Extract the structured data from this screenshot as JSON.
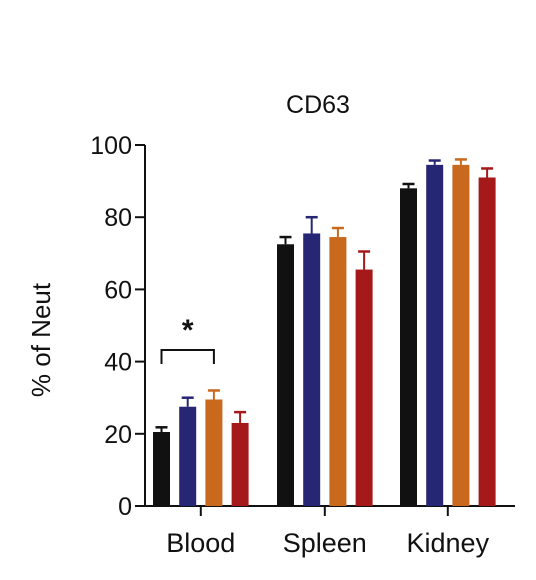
{
  "chart_data": {
    "type": "bar",
    "title": "CD63",
    "xlabel": "",
    "ylabel": "% of Neut",
    "ylim": [
      0,
      100
    ],
    "yticks": [
      "0",
      "20",
      "40",
      "60",
      "80",
      "100"
    ],
    "categories": [
      "Blood",
      "Spleen",
      "Kidney"
    ],
    "series": [
      {
        "color": "#111111",
        "values": [
          20.5,
          72.5,
          88
        ],
        "errors": [
          1.3,
          2,
          1.2
        ]
      },
      {
        "color": "#262674",
        "values": [
          27.5,
          75.5,
          94.5
        ],
        "errors": [
          2.5,
          4.5,
          1.2
        ]
      },
      {
        "color": "#c8691e",
        "values": [
          29.5,
          74.5,
          94.5
        ],
        "errors": [
          2.5,
          2.5,
          1.5
        ]
      },
      {
        "color": "#a5191b",
        "values": [
          23,
          65.5,
          91
        ],
        "errors": [
          3,
          5,
          2.5
        ]
      }
    ],
    "annotations": [
      {
        "text": "*",
        "category": "Blood",
        "from_series": 0,
        "to_series": 2,
        "type": "significance-bracket"
      }
    ],
    "grid": false,
    "legend": "none"
  }
}
